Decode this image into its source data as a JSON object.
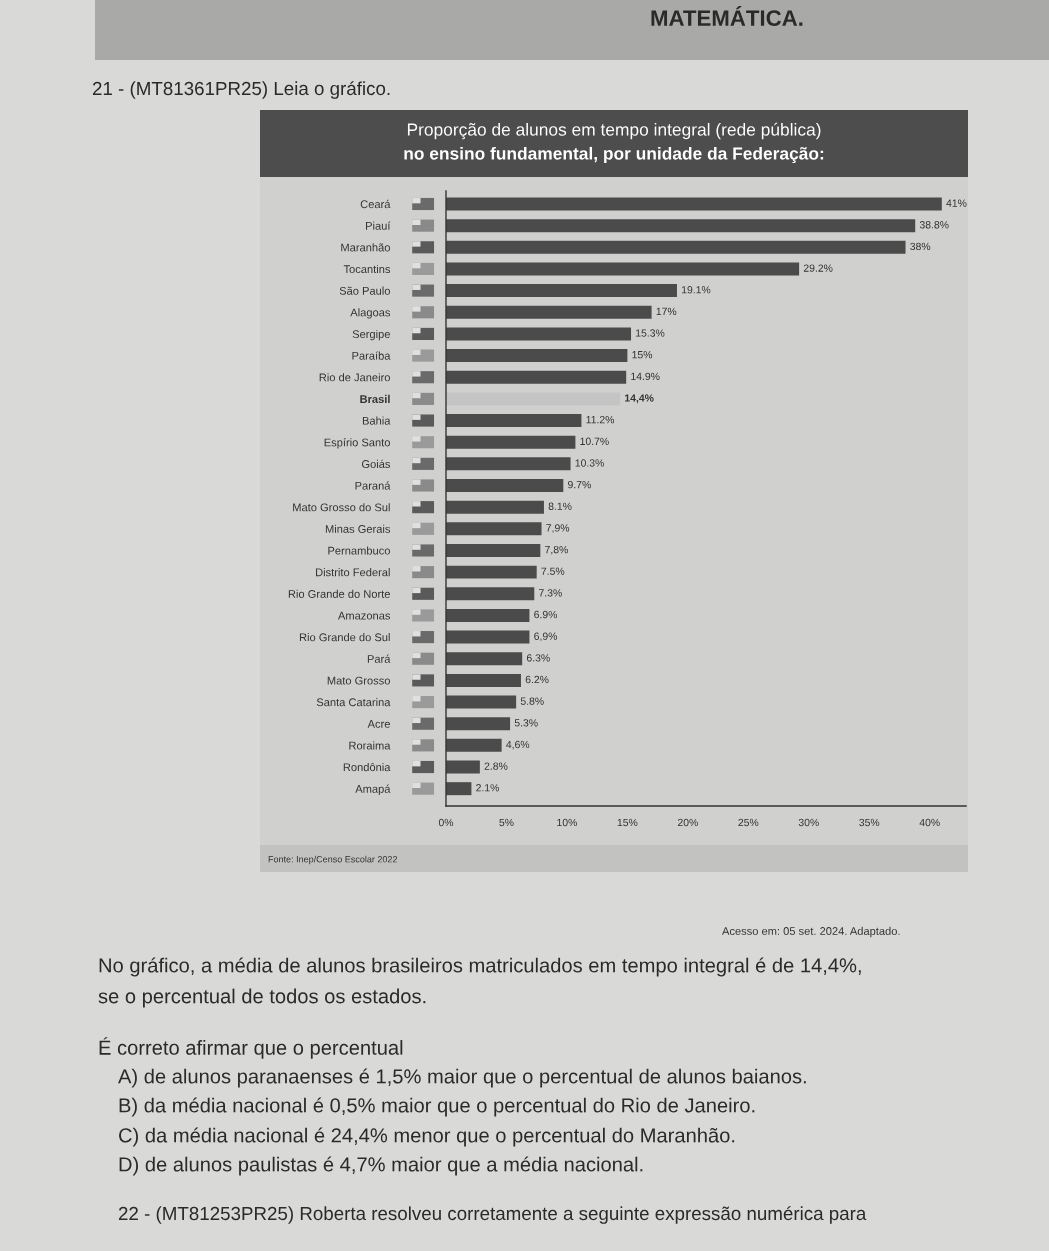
{
  "chart_data": {
    "type": "bar",
    "orientation": "horizontal",
    "title": "Proporção de alunos em tempo integral (rede pública)\nno ensino fundamental, por unidade da Federação:",
    "categories": [
      "Ceará",
      "Piauí",
      "Maranhão",
      "Tocantins",
      "São Paulo",
      "Alagoas",
      "Sergipe",
      "Paraíba",
      "Rio de Janeiro",
      "Brasil",
      "Bahia",
      "Espírio Santo",
      "Goiás",
      "Paraná",
      "Mato Grosso do Sul",
      "Minas Gerais",
      "Pernambuco",
      "Distrito Federal",
      "Rio Grande do Norte",
      "Amazonas",
      "Rio Grande do Sul",
      "Pará",
      "Mato Grosso",
      "Santa Catarina",
      "Acre",
      "Roraima",
      "Rondônia",
      "Amapá"
    ],
    "values": [
      41,
      38.8,
      38,
      29.2,
      19.1,
      17,
      15.3,
      15,
      14.9,
      14.4,
      11.2,
      10.7,
      10.3,
      9.7,
      8.1,
      7.9,
      7.8,
      7.5,
      7.3,
      6.9,
      6.9,
      6.3,
      6.2,
      5.8,
      5.3,
      4.6,
      2.8,
      2.1
    ],
    "colors": [
      "#4b4b4b",
      "#4b4b4b",
      "#4b4b4b",
      "#4b4b4b",
      "#4b4b4b",
      "#4b4b4b",
      "#4b4b4b",
      "#4b4b4b",
      "#4b4b4b",
      "#c4c4c4",
      "#4b4b4b",
      "#4b4b4b",
      "#4b4b4b",
      "#4b4b4b",
      "#4b4b4b",
      "#4b4b4b",
      "#4b4b4b",
      "#4b4b4b",
      "#4b4b4b",
      "#4b4b4b",
      "#4b4b4b",
      "#4b4b4b",
      "#4b4b4b",
      "#4b4b4b",
      "#4b4b4b",
      "#4b4b4b",
      "#4b4b4b",
      "#4b4b4b"
    ],
    "value_labels": [
      "41%",
      "38.8%",
      "38%",
      "29.2%",
      "19.1%",
      "17%",
      "15.3%",
      "15%",
      "14.9%",
      "14,4%",
      "11.2%",
      "10.7%",
      "10.3%",
      "9.7%",
      "8.1%",
      "7,9%",
      "7,8%",
      "7.5%",
      "7.3%",
      "6.9%",
      "6,9%",
      "6.3%",
      "6.2%",
      "5.8%",
      "5.3%",
      "4,6%",
      "2.8%",
      "2.1%"
    ],
    "xlim": [
      0,
      43
    ],
    "xticks": [
      {
        "value": 0,
        "label": "0%"
      },
      {
        "value": 5,
        "label": "5%"
      },
      {
        "value": 10,
        "label": "10%"
      },
      {
        "value": 15,
        "label": "15%"
      },
      {
        "value": 20,
        "label": "20%"
      },
      {
        "value": 25,
        "label": "25%"
      },
      {
        "value": 30,
        "label": "30%"
      },
      {
        "value": 35,
        "label": "35%"
      },
      {
        "value": 40,
        "label": "40%"
      }
    ],
    "annotations": [
      "MATEMÁTICA.",
      "21 - (MT81361PR25) Leia o gráfico.",
      "Fonte: Inep/Censo Escolar 2022",
      "Acesso em: 05 set. 2024. Adaptado.",
      "No gráfico, a média de alunos brasileiros matriculados em tempo integral é de 14,4%,",
      "se o percentual de todos os estados.",
      "É correto afirmar que o percentual",
      "A) de alunos paranaenses é 1,5% maior que o percentual de alunos baianos.",
      "B) da média nacional é 0,5% maior que o percentual do Rio de Janeiro.",
      "C) da média nacional é 24,4% menor que o percentual do Maranhão.",
      "D) de alunos paulistas é 4,7% maior que a média nacional.",
      "22 - (MT81253PR25) Roberta resolveu corretamente a seguinte expressão numérica para"
    ]
  }
}
